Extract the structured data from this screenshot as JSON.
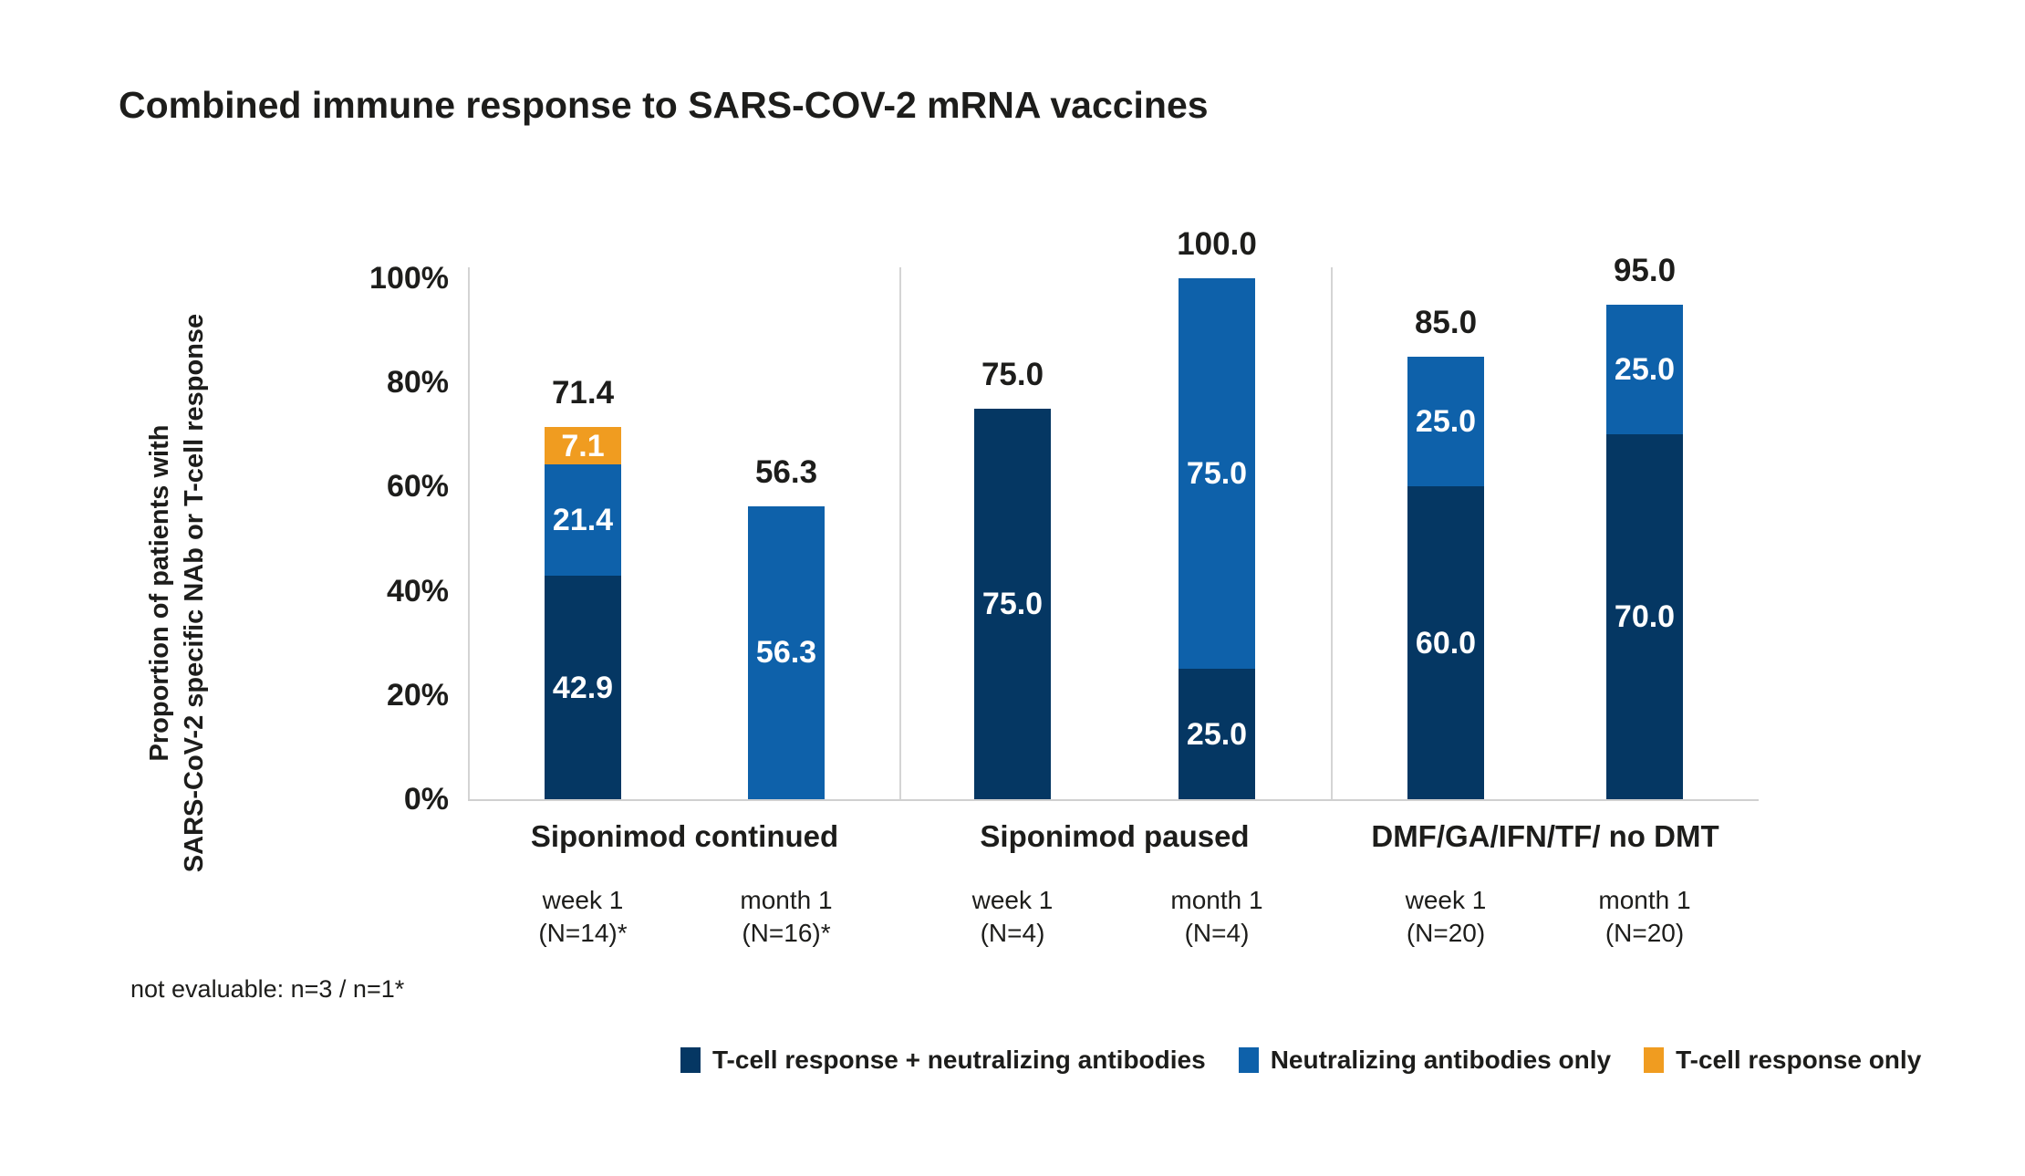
{
  "title": "Combined immune response to SARS-COV-2 mRNA vaccines",
  "y_axis": {
    "label_line1": "Proportion of patients with",
    "label_line2": "SARS-CoV-2 specific NAb or T-cell response",
    "ticks": [
      {
        "value": 100,
        "label": "100%"
      },
      {
        "value": 80,
        "label": "80%"
      },
      {
        "value": 60,
        "label": "60%"
      },
      {
        "value": 40,
        "label": "40%"
      },
      {
        "value": 20,
        "label": "20%"
      },
      {
        "value": 0,
        "label": "0%"
      }
    ]
  },
  "footnote": "not evaluable: n=3 / n=1*",
  "colors": {
    "navy": "#053763",
    "blue": "#0e61aa",
    "orange": "#f09c20",
    "text": "#1d1d1b",
    "line": "#d4d4d4"
  },
  "legend": [
    {
      "label": "T-cell response + neutralizing antibodies",
      "color_key": "navy"
    },
    {
      "label": "Neutralizing antibodies only",
      "color_key": "blue"
    },
    {
      "label": "T-cell response only",
      "color_key": "orange"
    }
  ],
  "chart_data": {
    "type": "bar",
    "stacked": true,
    "title": "Combined immune response to SARS-COV-2 mRNA vaccines",
    "ylabel": "Proportion of patients with SARS-CoV-2 specific NAb or T-cell response",
    "ylim": [
      0,
      100
    ],
    "grid": false,
    "legend_position": "bottom",
    "series_names": [
      "T-cell response + neutralizing antibodies",
      "Neutralizing antibodies only",
      "T-cell response only"
    ],
    "groups": [
      {
        "label": "Siponimod continued",
        "bars": [
          {
            "tick_line1": "week 1",
            "tick_line2": "(N=14)*",
            "total_label": "71.4",
            "total": 71.4,
            "segments": [
              {
                "series": "T-cell response + neutralizing antibodies",
                "value": 42.9,
                "label": "42.9",
                "color_key": "navy"
              },
              {
                "series": "Neutralizing antibodies only",
                "value": 21.4,
                "label": "21.4",
                "color_key": "blue"
              },
              {
                "series": "T-cell response only",
                "value": 7.1,
                "label": "7.1",
                "color_key": "orange"
              }
            ]
          },
          {
            "tick_line1": "month 1",
            "tick_line2": "(N=16)*",
            "total_label": "56.3",
            "total": 56.3,
            "segments": [
              {
                "series": "Neutralizing antibodies only",
                "value": 56.3,
                "label": "56.3",
                "color_key": "blue"
              }
            ]
          }
        ]
      },
      {
        "label": "Siponimod paused",
        "bars": [
          {
            "tick_line1": "week 1",
            "tick_line2": "(N=4)",
            "total_label": "75.0",
            "total": 75.0,
            "segments": [
              {
                "series": "T-cell response + neutralizing antibodies",
                "value": 75.0,
                "label": "75.0",
                "color_key": "navy"
              }
            ]
          },
          {
            "tick_line1": "month 1",
            "tick_line2": "(N=4)",
            "total_label": "100.0",
            "total": 100.0,
            "segments": [
              {
                "series": "T-cell response + neutralizing antibodies",
                "value": 25.0,
                "label": "25.0",
                "color_key": "navy"
              },
              {
                "series": "Neutralizing antibodies only",
                "value": 75.0,
                "label": "75.0",
                "color_key": "blue"
              }
            ]
          }
        ]
      },
      {
        "label": "DMF/GA/IFN/TF/ no DMT",
        "bars": [
          {
            "tick_line1": "week 1",
            "tick_line2": "(N=20)",
            "total_label": "85.0",
            "total": 85.0,
            "segments": [
              {
                "series": "T-cell response + neutralizing antibodies",
                "value": 60.0,
                "label": "60.0",
                "color_key": "navy"
              },
              {
                "series": "Neutralizing antibodies only",
                "value": 25.0,
                "label": "25.0",
                "color_key": "blue"
              }
            ]
          },
          {
            "tick_line1": "month 1",
            "tick_line2": "(N=20)",
            "total_label": "95.0",
            "total": 95.0,
            "segments": [
              {
                "series": "T-cell response + neutralizing antibodies",
                "value": 70.0,
                "label": "70.0",
                "color_key": "navy"
              },
              {
                "series": "Neutralizing antibodies only",
                "value": 25.0,
                "label": "25.0",
                "color_key": "blue"
              }
            ]
          }
        ]
      }
    ]
  }
}
